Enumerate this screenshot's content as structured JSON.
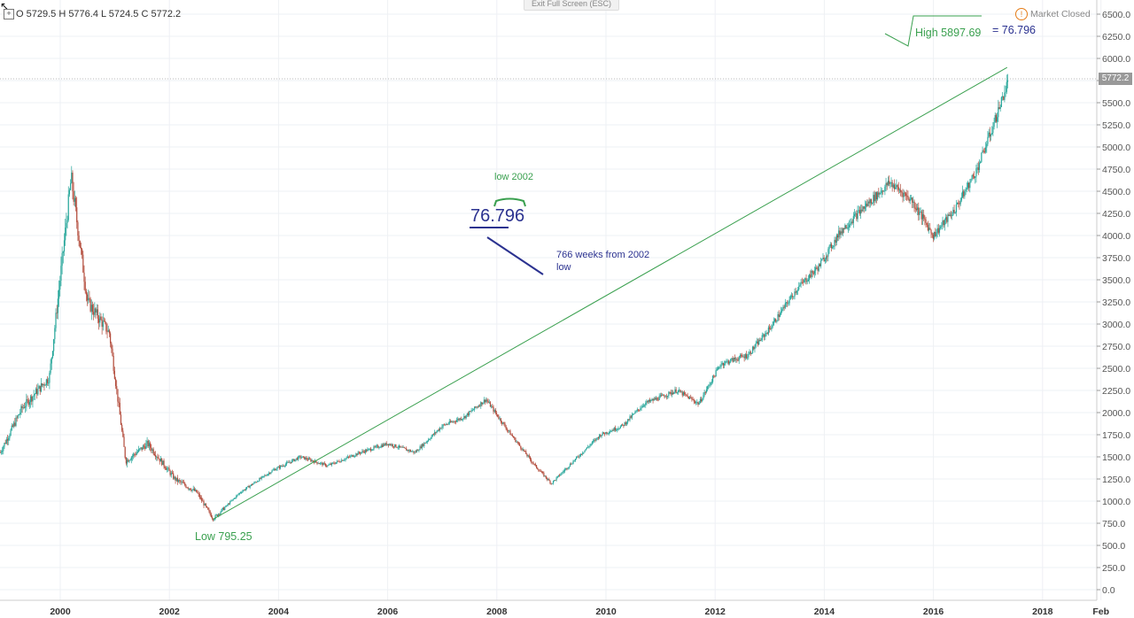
{
  "header": {
    "exit_button": "Exit Full Screen (ESC)",
    "ohlc": "O 5729.5 H 5776.4 L 5724.5 C 5772.2",
    "market_status": "Market Closed",
    "market_status_icon": "warning-icon",
    "current_price_label": "5772.2"
  },
  "annotations": {
    "low_label": "Low 795.25",
    "high_label": "High 5897.69",
    "high_eq": "= 76.796",
    "center_number": "76.796",
    "low_2002_note": "low 2002",
    "weeks_note_line1": "766 weeks from 2002",
    "weeks_note_line2": "low"
  },
  "colors": {
    "up_candle": "#26a69a",
    "down_candle": "#b24a3a",
    "trendline": "#3aa04f",
    "annotation_green": "#3aa04f",
    "annotation_blue": "#2b3290",
    "price_tag": "#999999"
  },
  "chart_data": {
    "type": "candlestick",
    "title": "",
    "xlabel": "",
    "ylabel": "",
    "ylim": [
      0,
      6500
    ],
    "y_ticks": [
      "6500.0",
      "6250.0",
      "6000.0",
      "5750.0",
      "5500.0",
      "5250.0",
      "5000.0",
      "4750.0",
      "4500.0",
      "4250.0",
      "4000.0",
      "3750.0",
      "3500.0",
      "3250.0",
      "3000.0",
      "2750.0",
      "2500.0",
      "2250.0",
      "2000.0",
      "1750.0",
      "1500.0",
      "1250.0",
      "1000.0",
      "750.0",
      "500.0",
      "250.0",
      "0.0"
    ],
    "x_ticks": [
      "2000",
      "2002",
      "2004",
      "2006",
      "2008",
      "2010",
      "2012",
      "2014",
      "2016",
      "2018",
      "Feb"
    ],
    "grid": true,
    "series": [
      {
        "x": [
          1998.9,
          1999.3,
          1999.8,
          2000.2,
          2000.5,
          2000.9,
          2001.2,
          2001.6,
          2002.1,
          2002.5,
          2002.8,
          2003.3,
          2003.9,
          2004.4,
          2004.9,
          2005.5,
          2006.0,
          2006.5,
          2007.0,
          2007.4,
          2007.8,
          2008.2,
          2008.7,
          2009.0,
          2009.4,
          2009.9,
          2010.3,
          2010.7,
          2011.3,
          2011.7,
          2012.1,
          2012.6,
          2013.0,
          2013.5,
          2013.9,
          2014.3,
          2014.7,
          2015.2,
          2015.6,
          2016.0,
          2016.4,
          2016.8,
          2017.1,
          2017.4
        ],
        "values": [
          1550,
          2050,
          2400,
          4650,
          3250,
          2900,
          1450,
          1650,
          1250,
          1100,
          800,
          1100,
          1350,
          1500,
          1400,
          1550,
          1650,
          1550,
          1850,
          1950,
          2150,
          1800,
          1400,
          1200,
          1450,
          1750,
          1850,
          2100,
          2250,
          2100,
          2550,
          2650,
          2950,
          3400,
          3650,
          4050,
          4300,
          4600,
          4400,
          4000,
          4300,
          4750,
          5250,
          5800
        ]
      }
    ],
    "trendline": {
      "from": {
        "x": 2002.8,
        "y": 795.25
      },
      "to": {
        "x": 2017.35,
        "y": 5897.69
      }
    },
    "current_price": 5772.2,
    "extremes": {
      "low": 795.25,
      "high": 5897.69
    }
  }
}
